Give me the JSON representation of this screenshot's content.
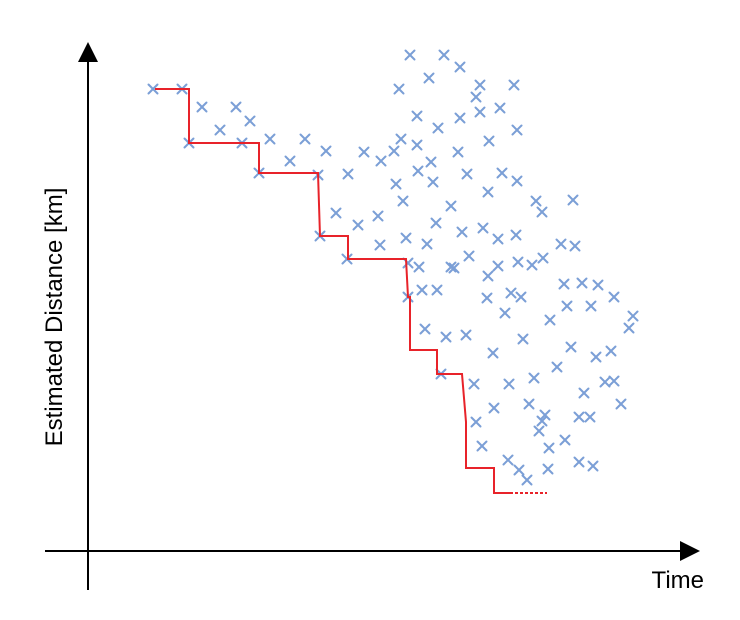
{
  "chart_data": {
    "type": "scatter",
    "title": "",
    "xlabel": "Time",
    "ylabel": "Estimated Distance [km]",
    "x_ticks": [],
    "y_ticks": [],
    "grid": false,
    "legend": "none",
    "series": [
      {
        "type": "scatter",
        "color": "#7b9fd6",
        "marker": "x",
        "points": [
          [
            153,
            89
          ],
          [
            182,
            89
          ],
          [
            189,
            143
          ],
          [
            202,
            107
          ],
          [
            220,
            130
          ],
          [
            236,
            107
          ],
          [
            250,
            121
          ],
          [
            242,
            143
          ],
          [
            259,
            173
          ],
          [
            270,
            139
          ],
          [
            290,
            161
          ],
          [
            305,
            139
          ],
          [
            318,
            175
          ],
          [
            326,
            151
          ],
          [
            320,
            236
          ],
          [
            336,
            213
          ],
          [
            348,
            174
          ],
          [
            347,
            259
          ],
          [
            358,
            225
          ],
          [
            364,
            152
          ],
          [
            378,
            216
          ],
          [
            381,
            161
          ],
          [
            380,
            245
          ],
          [
            394,
            151
          ],
          [
            396,
            184
          ],
          [
            399,
            89
          ],
          [
            401,
            139
          ],
          [
            403,
            201
          ],
          [
            406,
            238
          ],
          [
            408,
            263
          ],
          [
            408,
            297
          ],
          [
            410,
            55
          ],
          [
            417,
            116
          ],
          [
            417,
            145
          ],
          [
            418,
            171
          ],
          [
            419,
            267
          ],
          [
            422,
            290
          ],
          [
            425,
            329
          ],
          [
            427,
            244
          ],
          [
            429,
            78
          ],
          [
            431,
            162
          ],
          [
            433,
            182
          ],
          [
            436,
            223
          ],
          [
            437,
            290
          ],
          [
            438,
            128
          ],
          [
            441,
            374
          ],
          [
            444,
            55
          ],
          [
            446,
            337
          ],
          [
            451,
            206
          ],
          [
            451,
            267
          ],
          [
            454,
            268
          ],
          [
            458,
            152
          ],
          [
            460,
            67
          ],
          [
            460,
            118
          ],
          [
            462,
            232
          ],
          [
            466,
            335
          ],
          [
            467,
            174
          ],
          [
            469,
            256
          ],
          [
            474,
            384
          ],
          [
            476,
            97
          ],
          [
            476,
            422
          ],
          [
            480,
            85
          ],
          [
            480,
            112
          ],
          [
            482,
            446
          ],
          [
            483,
            228
          ],
          [
            488,
            192
          ],
          [
            488,
            276
          ],
          [
            487,
            298
          ],
          [
            489,
            141
          ],
          [
            493,
            353
          ],
          [
            494,
            408
          ],
          [
            498,
            239
          ],
          [
            498,
            266
          ],
          [
            500,
            108
          ],
          [
            502,
            173
          ],
          [
            505,
            313
          ],
          [
            508,
            460
          ],
          [
            509,
            384
          ],
          [
            511,
            293
          ],
          [
            514,
            85
          ],
          [
            516,
            235
          ],
          [
            517,
            130
          ],
          [
            517,
            181
          ],
          [
            518,
            262
          ],
          [
            519,
            470
          ],
          [
            521,
            297
          ],
          [
            523,
            339
          ],
          [
            527,
            480
          ],
          [
            529,
            404
          ],
          [
            532,
            265
          ],
          [
            534,
            378
          ],
          [
            536,
            201
          ],
          [
            539,
            431
          ],
          [
            542,
            421
          ],
          [
            542,
            212
          ],
          [
            543,
            258
          ],
          [
            545,
            415
          ],
          [
            548,
            469
          ],
          [
            549,
            448
          ],
          [
            550,
            320
          ],
          [
            557,
            367
          ],
          [
            561,
            244
          ],
          [
            564,
            284
          ],
          [
            565,
            440
          ],
          [
            567,
            306
          ],
          [
            571,
            347
          ],
          [
            573,
            200
          ],
          [
            575,
            246
          ],
          [
            579,
            462
          ],
          [
            579,
            417
          ],
          [
            582,
            283
          ],
          [
            584,
            393
          ],
          [
            590,
            417
          ],
          [
            591,
            306
          ],
          [
            593,
            466
          ],
          [
            596,
            357
          ],
          [
            598,
            285
          ],
          [
            605,
            382
          ],
          [
            611,
            351
          ],
          [
            614,
            381
          ],
          [
            614,
            297
          ],
          [
            621,
            404
          ],
          [
            629,
            328
          ],
          [
            633,
            316
          ]
        ]
      },
      {
        "type": "step",
        "color": "#e8232a",
        "points": [
          [
            155,
            89
          ],
          [
            189,
            89
          ],
          [
            189,
            143
          ],
          [
            259,
            143
          ],
          [
            259,
            173
          ],
          [
            318,
            173
          ],
          [
            320,
            236
          ],
          [
            348,
            236
          ],
          [
            348,
            259
          ],
          [
            406,
            259
          ],
          [
            408,
            297
          ],
          [
            410,
            297
          ],
          [
            410,
            350
          ],
          [
            437,
            350
          ],
          [
            437,
            374
          ],
          [
            462,
            374
          ],
          [
            466,
            422
          ],
          [
            466,
            468
          ],
          [
            494,
            468
          ],
          [
            494,
            493
          ],
          [
            510,
            493
          ]
        ]
      },
      {
        "type": "line",
        "style": "dotted",
        "color": "#e8232a",
        "points": [
          [
            510,
            493
          ],
          [
            547,
            493
          ]
        ]
      }
    ]
  }
}
